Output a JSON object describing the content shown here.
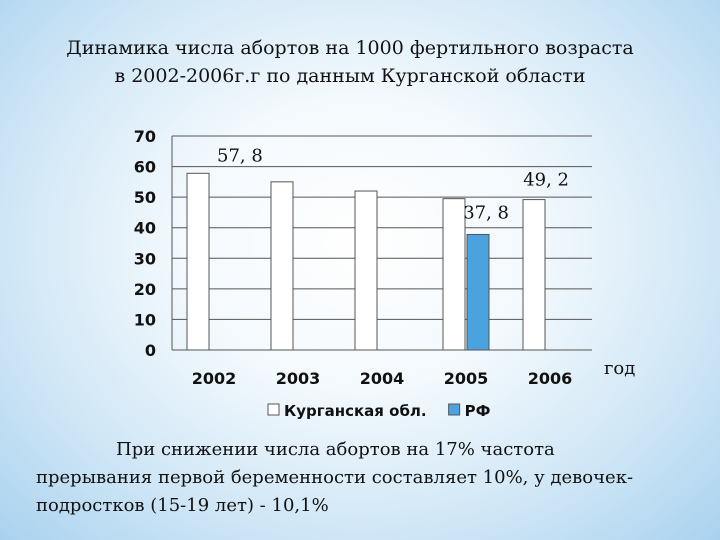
{
  "title": "Динамика числа абортов на 1000 фертильного возраста в 2002-2006г.г по данным Курганской области",
  "caption": "При снижении числа абортов на 17% частота прерывания первой беременности составляет 10%, у девочек-подростков (15-19 лет) - 10,1%",
  "chart_data": {
    "type": "bar",
    "title": "Динамика числа абортов на 1000 фертильного возраста в 2002-2006г.г по данным Курганской области",
    "xlabel": "год",
    "ylabel": "",
    "ylim": [
      0,
      70
    ],
    "yticks": [
      "0",
      "10",
      "20",
      "30",
      "40",
      "50",
      "60",
      "70"
    ],
    "categories": [
      "2002",
      "2003",
      "2004",
      "2005",
      "2006"
    ],
    "grid": true,
    "legend_position": "bottom",
    "series": [
      {
        "name": "Курганская обл.",
        "color": "#ffffff",
        "values": [
          57.8,
          55,
          52,
          49.5,
          49.2
        ]
      },
      {
        "name": "РФ",
        "color": "#4aa3df",
        "values": [
          null,
          null,
          null,
          37.8,
          null
        ]
      }
    ],
    "annotations": [
      {
        "text": "57, 8",
        "category": "2002",
        "series": 0
      },
      {
        "text": "37, 8",
        "category": "2005",
        "series": 1
      },
      {
        "text": "49, 2",
        "category": "2006",
        "series": 0
      }
    ]
  }
}
